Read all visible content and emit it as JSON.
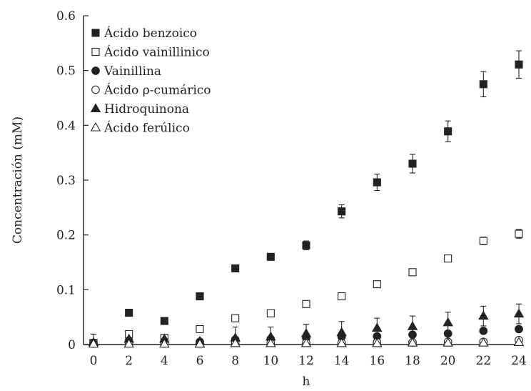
{
  "chart_data": {
    "type": "scatter",
    "title": "",
    "xlabel": "h",
    "ylabel": "Concentración (mM)",
    "xlim": [
      0,
      24
    ],
    "ylim": [
      0,
      0.6
    ],
    "x_ticks": [
      "0",
      "2",
      "4",
      "6",
      "8",
      "10",
      "12",
      "14",
      "16",
      "18",
      "20",
      "22",
      "24"
    ],
    "y_ticks": [
      "0",
      "0.1",
      "0.2",
      "0.3",
      "0.4",
      "0.5",
      "0.6"
    ],
    "x": [
      0,
      2,
      4,
      6,
      8,
      10,
      12,
      14,
      16,
      18,
      20,
      22,
      24
    ],
    "legend_position": "top-left",
    "series": [
      {
        "name": "Ácido benzoico",
        "marker": "filled-square",
        "values": [
          0.003,
          0.058,
          0.043,
          0.088,
          0.139,
          0.16,
          0.181,
          0.243,
          0.296,
          0.33,
          0.389,
          0.475,
          0.511
        ],
        "errors": [
          0.003,
          0.002,
          0.003,
          0.002,
          0.006,
          0.006,
          0.008,
          0.012,
          0.015,
          0.017,
          0.019,
          0.023,
          0.025
        ]
      },
      {
        "name": "Ácido vainillinico",
        "marker": "open-square",
        "values": [
          0.003,
          0.019,
          0.012,
          0.028,
          0.048,
          0.057,
          0.074,
          0.088,
          0.11,
          0.132,
          0.157,
          0.189,
          0.202
        ],
        "errors": [
          0.003,
          0.003,
          0.003,
          0.002,
          0.002,
          0.002,
          0.002,
          0.003,
          0.003,
          0.005,
          0.006,
          0.007,
          0.008
        ]
      },
      {
        "name": "Vainillina",
        "marker": "filled-circle",
        "values": [
          0.002,
          0.007,
          0.006,
          0.005,
          0.009,
          0.01,
          0.012,
          0.014,
          0.015,
          0.018,
          0.02,
          0.025,
          0.028
        ],
        "errors": [
          0.002,
          0.002,
          0.002,
          0.002,
          0.002,
          0.002,
          0.002,
          0.003,
          0.003,
          0.003,
          0.003,
          0.004,
          0.004
        ]
      },
      {
        "name": "Ácido ρ-cumárico",
        "marker": "open-circle",
        "values": [
          0.002,
          0.003,
          0.002,
          0.002,
          0.003,
          0.003,
          0.003,
          0.003,
          0.004,
          0.004,
          0.005,
          0.005,
          0.008
        ],
        "errors": [
          0.002,
          0.002,
          0.002,
          0.002,
          0.002,
          0.002,
          0.002,
          0.002,
          0.002,
          0.002,
          0.003,
          0.003,
          0.004
        ]
      },
      {
        "name": "Hidroquinona",
        "marker": "filled-triangle",
        "values": [
          0.004,
          0.01,
          0.01,
          0.006,
          0.012,
          0.014,
          0.02,
          0.022,
          0.03,
          0.033,
          0.04,
          0.052,
          0.056
        ],
        "errors": [
          0.015,
          0.004,
          0.004,
          0.004,
          0.02,
          0.018,
          0.017,
          0.02,
          0.018,
          0.019,
          0.019,
          0.018,
          0.018
        ]
      },
      {
        "name": "Ácido ferúlico",
        "marker": "open-triangle",
        "values": [
          0.001,
          0.001,
          0.001,
          0.001,
          0.002,
          0.002,
          0.002,
          0.002,
          0.002,
          0.003,
          0.003,
          0.003,
          0.004
        ],
        "errors": [
          0.001,
          0.001,
          0.001,
          0.001,
          0.001,
          0.001,
          0.001,
          0.001,
          0.001,
          0.001,
          0.001,
          0.001,
          0.001
        ]
      }
    ],
    "colors": {
      "ink": "#222222",
      "open_fill": "#ffffff"
    }
  }
}
